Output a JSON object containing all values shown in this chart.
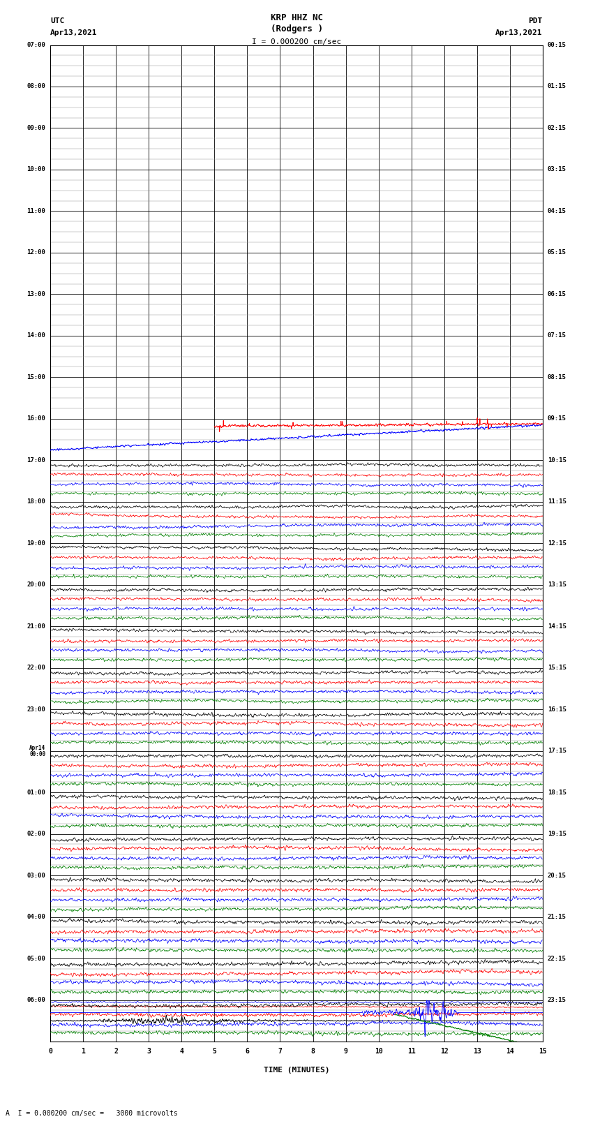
{
  "title_line1": "KRP HHZ NC",
  "title_line2": "(Rodgers )",
  "title_scale": "I = 0.000200 cm/sec",
  "label_left_top": "UTC",
  "label_left_date": "Apr13,2021",
  "label_right_top": "PDT",
  "label_right_date": "Apr13,2021",
  "xlabel": "TIME (MINUTES)",
  "bottom_note": "A  I = 0.000200 cm/sec =   3000 microvolts",
  "utc_times_left": [
    "07:00",
    "08:00",
    "09:00",
    "10:00",
    "11:00",
    "12:00",
    "13:00",
    "14:00",
    "15:00",
    "16:00",
    "17:00",
    "18:00",
    "19:00",
    "20:00",
    "21:00",
    "22:00",
    "23:00",
    "Apr14\n00:00",
    "01:00",
    "02:00",
    "03:00",
    "04:00",
    "05:00",
    "06:00"
  ],
  "pdt_times_right": [
    "00:15",
    "01:15",
    "02:15",
    "03:15",
    "04:15",
    "05:15",
    "06:15",
    "07:15",
    "08:15",
    "09:15",
    "10:15",
    "11:15",
    "12:15",
    "13:15",
    "14:15",
    "15:15",
    "16:15",
    "17:15",
    "18:15",
    "19:15",
    "20:15",
    "21:15",
    "22:15",
    "23:15"
  ],
  "n_rows": 24,
  "n_cols": 15,
  "background_color": "#ffffff",
  "grid_color": "#000000",
  "fig_width": 8.5,
  "fig_height": 16.13
}
